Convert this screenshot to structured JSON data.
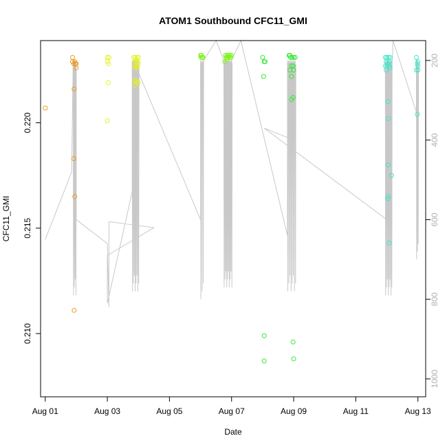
{
  "chart_data": {
    "type": "scatter",
    "title": "ATOM1 Southbound CFC11_GMI",
    "xlabel": "Date",
    "ylabel": "CFC11_GMI",
    "xlim": [
      -0.15,
      12.25
    ],
    "ylim": [
      0.207,
      0.2239
    ],
    "x_ticks": [
      {
        "value": 0,
        "label": "Aug 01"
      },
      {
        "value": 2,
        "label": "Aug 03"
      },
      {
        "value": 4,
        "label": "Aug 05"
      },
      {
        "value": 6,
        "label": "Aug 07"
      },
      {
        "value": 8,
        "label": "Aug 09"
      },
      {
        "value": 10,
        "label": "Aug 11"
      },
      {
        "value": 12,
        "label": "Aug 13"
      }
    ],
    "y_ticks": [
      {
        "value": 0.21,
        "label": "0.210"
      },
      {
        "value": 0.215,
        "label": "0.215"
      },
      {
        "value": 0.22,
        "label": "0.220"
      }
    ],
    "y2_ticks": [
      {
        "value": 200,
        "label": "200"
      },
      {
        "value": 400,
        "label": "400"
      },
      {
        "value": 600,
        "label": "600"
      },
      {
        "value": 800,
        "label": "800"
      },
      {
        "value": 1000,
        "label": "1000"
      }
    ],
    "y2lim": [
      1045,
      150
    ],
    "series": [
      {
        "color": "#ee9a22",
        "points": [
          [
            0.0,
            0.2207
          ],
          [
            0.88,
            0.2231
          ],
          [
            0.88,
            0.2229
          ],
          [
            0.92,
            0.2228
          ],
          [
            0.95,
            0.2229
          ],
          [
            0.97,
            0.2228
          ],
          [
            1.0,
            0.2228
          ],
          [
            1.0,
            0.2226
          ],
          [
            0.93,
            0.2216
          ],
          [
            0.92,
            0.2183
          ],
          [
            0.95,
            0.2165
          ],
          [
            0.93,
            0.2111
          ]
        ]
      },
      {
        "color": "#e3f122",
        "points": [
          [
            2.0,
            0.2231
          ],
          [
            2.05,
            0.2231
          ],
          [
            2.0,
            0.2229
          ],
          [
            2.04,
            0.2228
          ],
          [
            2.03,
            0.2219
          ],
          [
            2.0,
            0.2201
          ],
          [
            2.85,
            0.2231
          ],
          [
            2.9,
            0.2231
          ],
          [
            2.95,
            0.2231
          ],
          [
            3.0,
            0.2231
          ],
          [
            2.88,
            0.2229
          ],
          [
            2.93,
            0.2229
          ],
          [
            2.98,
            0.2229
          ],
          [
            2.87,
            0.2227
          ],
          [
            2.95,
            0.2227
          ],
          [
            3.0,
            0.2228
          ],
          [
            2.9,
            0.2226
          ],
          [
            2.96,
            0.2226
          ],
          [
            2.88,
            0.222
          ],
          [
            2.95,
            0.2219
          ],
          [
            2.9,
            0.2218
          ],
          [
            3.0,
            0.2219
          ],
          [
            2.92,
            0.222
          ]
        ]
      },
      {
        "color": "#7df218",
        "points": [
          [
            5.0,
            0.2232
          ],
          [
            5.03,
            0.2232
          ],
          [
            5.06,
            0.2231
          ],
          [
            5.08,
            0.2231
          ],
          [
            5.02,
            0.2231
          ],
          [
            5.8,
            0.2232
          ],
          [
            5.85,
            0.2232
          ],
          [
            5.9,
            0.2232
          ],
          [
            5.95,
            0.2232
          ],
          [
            6.0,
            0.2232
          ],
          [
            5.83,
            0.2231
          ],
          [
            5.88,
            0.2231
          ],
          [
            5.93,
            0.2231
          ],
          [
            5.98,
            0.2231
          ],
          [
            5.78,
            0.2229
          ],
          [
            5.85,
            0.223
          ]
        ]
      },
      {
        "color": "#36e836",
        "points": [
          [
            7.0,
            0.2231
          ],
          [
            7.05,
            0.2229
          ],
          [
            7.08,
            0.2229
          ],
          [
            7.03,
            0.2222
          ],
          [
            7.05,
            0.2099
          ],
          [
            7.05,
            0.2087
          ],
          [
            7.85,
            0.2232
          ],
          [
            7.9,
            0.2231
          ],
          [
            7.95,
            0.2231
          ],
          [
            8.0,
            0.2231
          ],
          [
            8.05,
            0.2231
          ],
          [
            7.88,
            0.2232
          ],
          [
            7.93,
            0.2227
          ],
          [
            7.98,
            0.2227
          ],
          [
            7.88,
            0.2225
          ],
          [
            8.0,
            0.2225
          ],
          [
            7.93,
            0.2222
          ],
          [
            7.98,
            0.2212
          ],
          [
            7.93,
            0.2211
          ],
          [
            7.98,
            0.2096
          ],
          [
            8.0,
            0.2088
          ]
        ]
      },
      {
        "color": "#3ce8c8",
        "points": [
          [
            10.95,
            0.2231
          ],
          [
            11.0,
            0.2231
          ],
          [
            11.05,
            0.2231
          ],
          [
            11.1,
            0.2231
          ],
          [
            10.98,
            0.2229
          ],
          [
            11.03,
            0.2228
          ],
          [
            11.08,
            0.2229
          ],
          [
            10.95,
            0.2227
          ],
          [
            11.0,
            0.2227
          ],
          [
            11.08,
            0.2227
          ],
          [
            10.98,
            0.2225
          ],
          [
            11.1,
            0.2226
          ],
          [
            11.03,
            0.221
          ],
          [
            11.05,
            0.2202
          ],
          [
            11.05,
            0.218
          ],
          [
            11.15,
            0.2175
          ],
          [
            11.05,
            0.2165
          ],
          [
            11.03,
            0.2164
          ],
          [
            11.08,
            0.2143
          ],
          [
            11.95,
            0.2231
          ],
          [
            12.0,
            0.2229
          ],
          [
            11.98,
            0.2228
          ],
          [
            12.0,
            0.2227
          ],
          [
            11.95,
            0.2225
          ],
          [
            12.0,
            0.2225
          ],
          [
            11.98,
            0.2204
          ]
        ]
      }
    ]
  }
}
